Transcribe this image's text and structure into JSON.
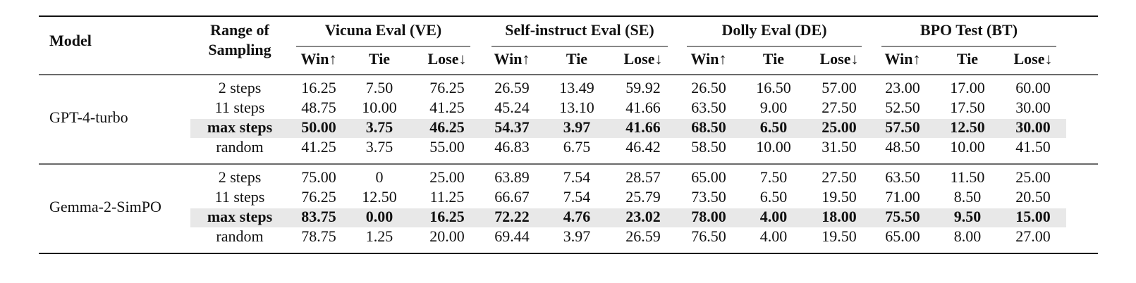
{
  "table": {
    "header": {
      "model": "Model",
      "range": [
        "Range of",
        "Sampling"
      ],
      "groups": [
        "Vicuna Eval (VE)",
        "Self-instruct Eval (SE)",
        "Dolly Eval (DE)",
        "BPO Test (BT)"
      ],
      "subheaders": [
        "Win↑",
        "Tie",
        "Lose↓"
      ]
    },
    "models": [
      {
        "name": "GPT-4-turbo",
        "rows": [
          {
            "range": "2 steps",
            "values": [
              "16.25",
              "7.50",
              "76.25",
              "26.59",
              "13.49",
              "59.92",
              "26.50",
              "16.50",
              "57.00",
              "23.00",
              "17.00",
              "60.00"
            ],
            "highlight": false
          },
          {
            "range": "11 steps",
            "values": [
              "48.75",
              "10.00",
              "41.25",
              "45.24",
              "13.10",
              "41.66",
              "63.50",
              "9.00",
              "27.50",
              "52.50",
              "17.50",
              "30.00"
            ],
            "highlight": false
          },
          {
            "range": "max steps",
            "values": [
              "50.00",
              "3.75",
              "46.25",
              "54.37",
              "3.97",
              "41.66",
              "68.50",
              "6.50",
              "25.00",
              "57.50",
              "12.50",
              "30.00"
            ],
            "highlight": true
          },
          {
            "range": "random",
            "values": [
              "41.25",
              "3.75",
              "55.00",
              "46.83",
              "6.75",
              "46.42",
              "58.50",
              "10.00",
              "31.50",
              "48.50",
              "10.00",
              "41.50"
            ],
            "highlight": false
          }
        ]
      },
      {
        "name": "Gemma-2-SimPO",
        "rows": [
          {
            "range": "2 steps",
            "values": [
              "75.00",
              "0",
              "25.00",
              "63.89",
              "7.54",
              "28.57",
              "65.00",
              "7.50",
              "27.50",
              "63.50",
              "11.50",
              "25.00"
            ],
            "highlight": false
          },
          {
            "range": "11 steps",
            "values": [
              "76.25",
              "12.50",
              "11.25",
              "66.67",
              "7.54",
              "25.79",
              "73.50",
              "6.50",
              "19.50",
              "71.00",
              "8.50",
              "20.50"
            ],
            "highlight": false
          },
          {
            "range": "max steps",
            "values": [
              "83.75",
              "0.00",
              "16.25",
              "72.22",
              "4.76",
              "23.02",
              "78.00",
              "4.00",
              "18.00",
              "75.50",
              "9.50",
              "15.00"
            ],
            "highlight": true
          },
          {
            "range": "random",
            "values": [
              "78.75",
              "1.25",
              "20.00",
              "69.44",
              "3.97",
              "26.59",
              "76.50",
              "4.00",
              "19.50",
              "65.00",
              "8.00",
              "27.00"
            ],
            "highlight": false
          }
        ]
      }
    ]
  }
}
